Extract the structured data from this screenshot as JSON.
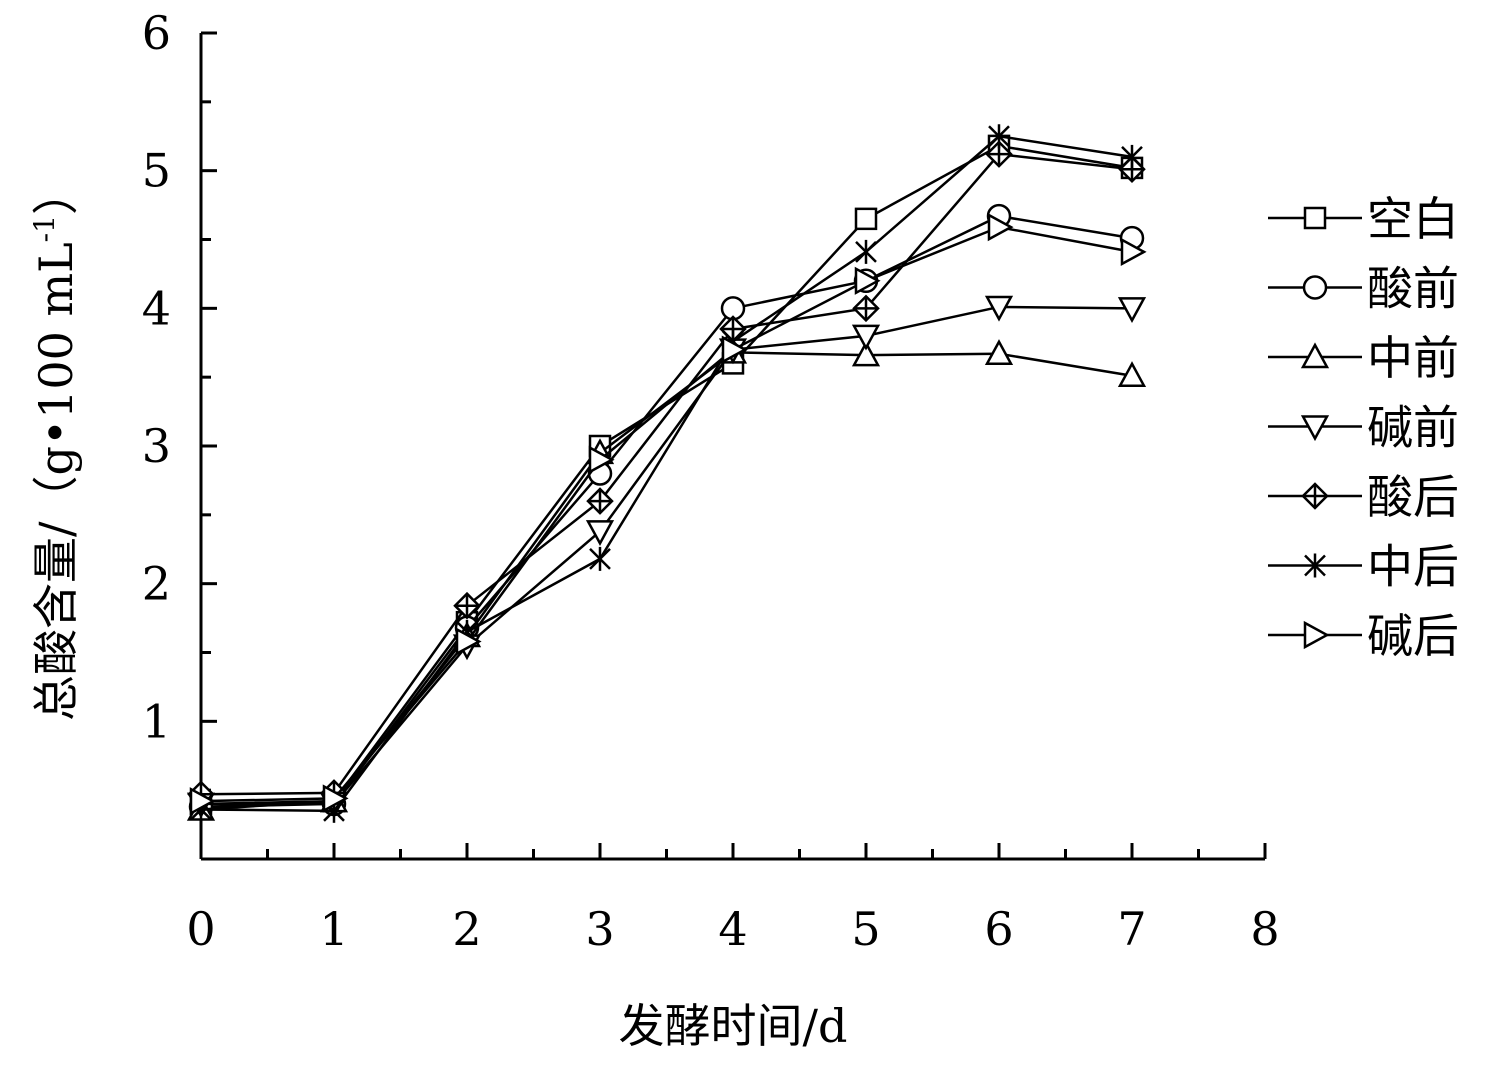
{
  "chart_data": {
    "type": "line",
    "title": "",
    "xlabel": "发酵时间/d",
    "ylabel_main": "总酸含量/（g•100  mL",
    "ylabel_sup": "-1",
    "ylabel_close": "）",
    "xlim": [
      0,
      8
    ],
    "ylim": [
      0,
      6
    ],
    "x_ticks": [
      0,
      1,
      2,
      3,
      4,
      5,
      6,
      7,
      8
    ],
    "y_ticks": [
      1,
      2,
      3,
      4,
      5,
      6
    ],
    "grid": false,
    "legend_position": "right",
    "x": [
      0,
      1,
      2,
      3,
      4,
      5,
      6,
      7
    ],
    "series": [
      {
        "name": "空白",
        "marker": "square",
        "values": [
          0.4,
          0.42,
          1.72,
          3.0,
          3.6,
          4.65,
          5.18,
          5.02
        ]
      },
      {
        "name": "酸前",
        "marker": "circle",
        "values": [
          0.38,
          0.4,
          1.68,
          2.8,
          4.0,
          4.2,
          4.67,
          4.51
        ]
      },
      {
        "name": "中前",
        "marker": "triangle-up",
        "values": [
          0.36,
          0.42,
          1.62,
          2.95,
          3.68,
          3.66,
          3.67,
          3.51
        ]
      },
      {
        "name": "碱前",
        "marker": "triangle-down",
        "values": [
          0.4,
          0.4,
          1.55,
          2.38,
          3.7,
          3.8,
          4.01,
          4.0
        ]
      },
      {
        "name": "酸后",
        "marker": "diamond-plus",
        "values": [
          0.47,
          0.48,
          1.84,
          2.6,
          3.85,
          4.0,
          5.12,
          5.01
        ]
      },
      {
        "name": "中后",
        "marker": "x-star",
        "values": [
          0.36,
          0.35,
          1.65,
          2.18,
          3.76,
          4.41,
          5.25,
          5.1
        ]
      },
      {
        "name": "碱后",
        "marker": "triangle-right",
        "values": [
          0.42,
          0.44,
          1.58,
          2.9,
          3.7,
          4.2,
          4.59,
          4.41
        ]
      }
    ]
  }
}
